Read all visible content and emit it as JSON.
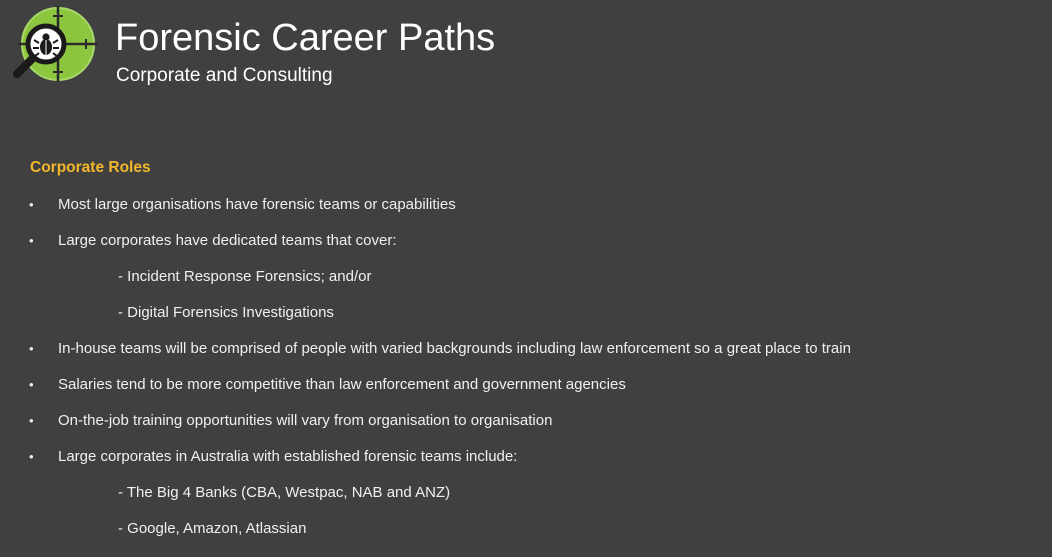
{
  "header": {
    "title": "Forensic Career Paths",
    "subtitle": "Corporate and Consulting",
    "logo_icon": "magnifier-bug-icon"
  },
  "section": {
    "heading": "Corporate Roles"
  },
  "bullet_symbol": "•",
  "items": [
    {
      "type": "bullet",
      "text": "Most large organisations have forensic teams or capabilities"
    },
    {
      "type": "bullet",
      "text": "Large corporates have dedicated teams that cover:"
    },
    {
      "type": "sub",
      "text": "- Incident Response Forensics; and/or"
    },
    {
      "type": "sub",
      "text": "- Digital Forensics Investigations"
    },
    {
      "type": "bullet",
      "text": "In-house teams will be comprised of people with varied backgrounds including law enforcement so a great place to train"
    },
    {
      "type": "bullet",
      "text": "Salaries tend to be more competitive than law enforcement and government agencies"
    },
    {
      "type": "bullet",
      "text": "On-the-job training opportunities will vary from organisation to organisation"
    },
    {
      "type": "bullet",
      "text": "Large corporates in Australia with established forensic teams include:"
    },
    {
      "type": "sub",
      "text": "- The Big 4 Banks (CBA, Westpac, NAB and ANZ)"
    },
    {
      "type": "sub",
      "text": "- Google, Amazon, Atlassian"
    }
  ],
  "colors": {
    "background": "#404040",
    "heading_accent": "#f2b82a",
    "logo_green": "#8cc63f"
  }
}
